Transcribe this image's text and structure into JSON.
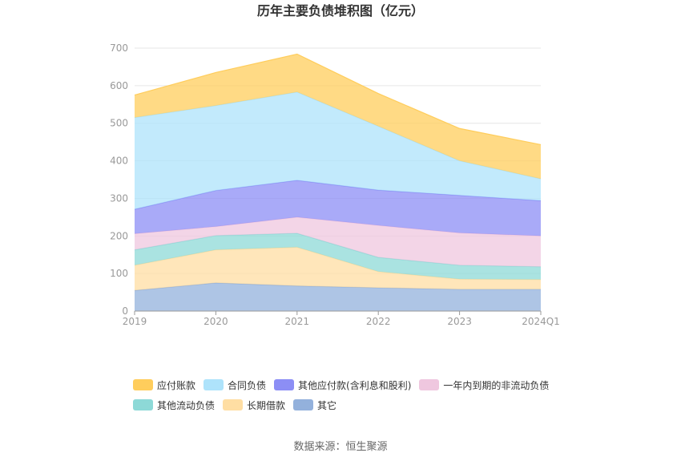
{
  "chart_data": {
    "type": "area",
    "stacked": true,
    "title": "历年主要负债堆积图（亿元）",
    "categories": [
      "2019",
      "2020",
      "2021",
      "2022",
      "2023",
      "2024Q1"
    ],
    "yticks": [
      0,
      100,
      200,
      300,
      400,
      500,
      600,
      700
    ],
    "ylim": [
      0,
      700
    ],
    "grid": true,
    "legend_position": "bottom",
    "series": [
      {
        "name": "其它",
        "color": "#93b1dc",
        "values": [
          55,
          75,
          67,
          62,
          58,
          58
        ]
      },
      {
        "name": "长期借款",
        "color": "#ffdea3",
        "values": [
          67,
          88,
          103,
          43,
          27,
          26
        ]
      },
      {
        "name": "其他流动负债",
        "color": "#8dd9d7",
        "values": [
          41,
          38,
          37,
          38,
          37,
          34
        ]
      },
      {
        "name": "一年内到期的非流动负债",
        "color": "#efc7df",
        "values": [
          43,
          24,
          43,
          85,
          86,
          82
        ]
      },
      {
        "name": "其他应付款(含利息和股利)",
        "color": "#8c8ef5",
        "values": [
          65,
          96,
          98,
          94,
          100,
          94
        ]
      },
      {
        "name": "合同负债",
        "color": "#aee3fb",
        "values": [
          244,
          226,
          235,
          170,
          92,
          58
        ]
      },
      {
        "name": "应付账款",
        "color": "#ffcd5c",
        "values": [
          60,
          88,
          101,
          87,
          86,
          91
        ]
      }
    ],
    "legend_order": [
      "应付账款",
      "合同负债",
      "其他应付款(含利息和股利)",
      "一年内到期的非流动负债",
      "其他流动负债",
      "长期借款",
      "其它"
    ]
  },
  "source_text": "数据来源：恒生聚源"
}
